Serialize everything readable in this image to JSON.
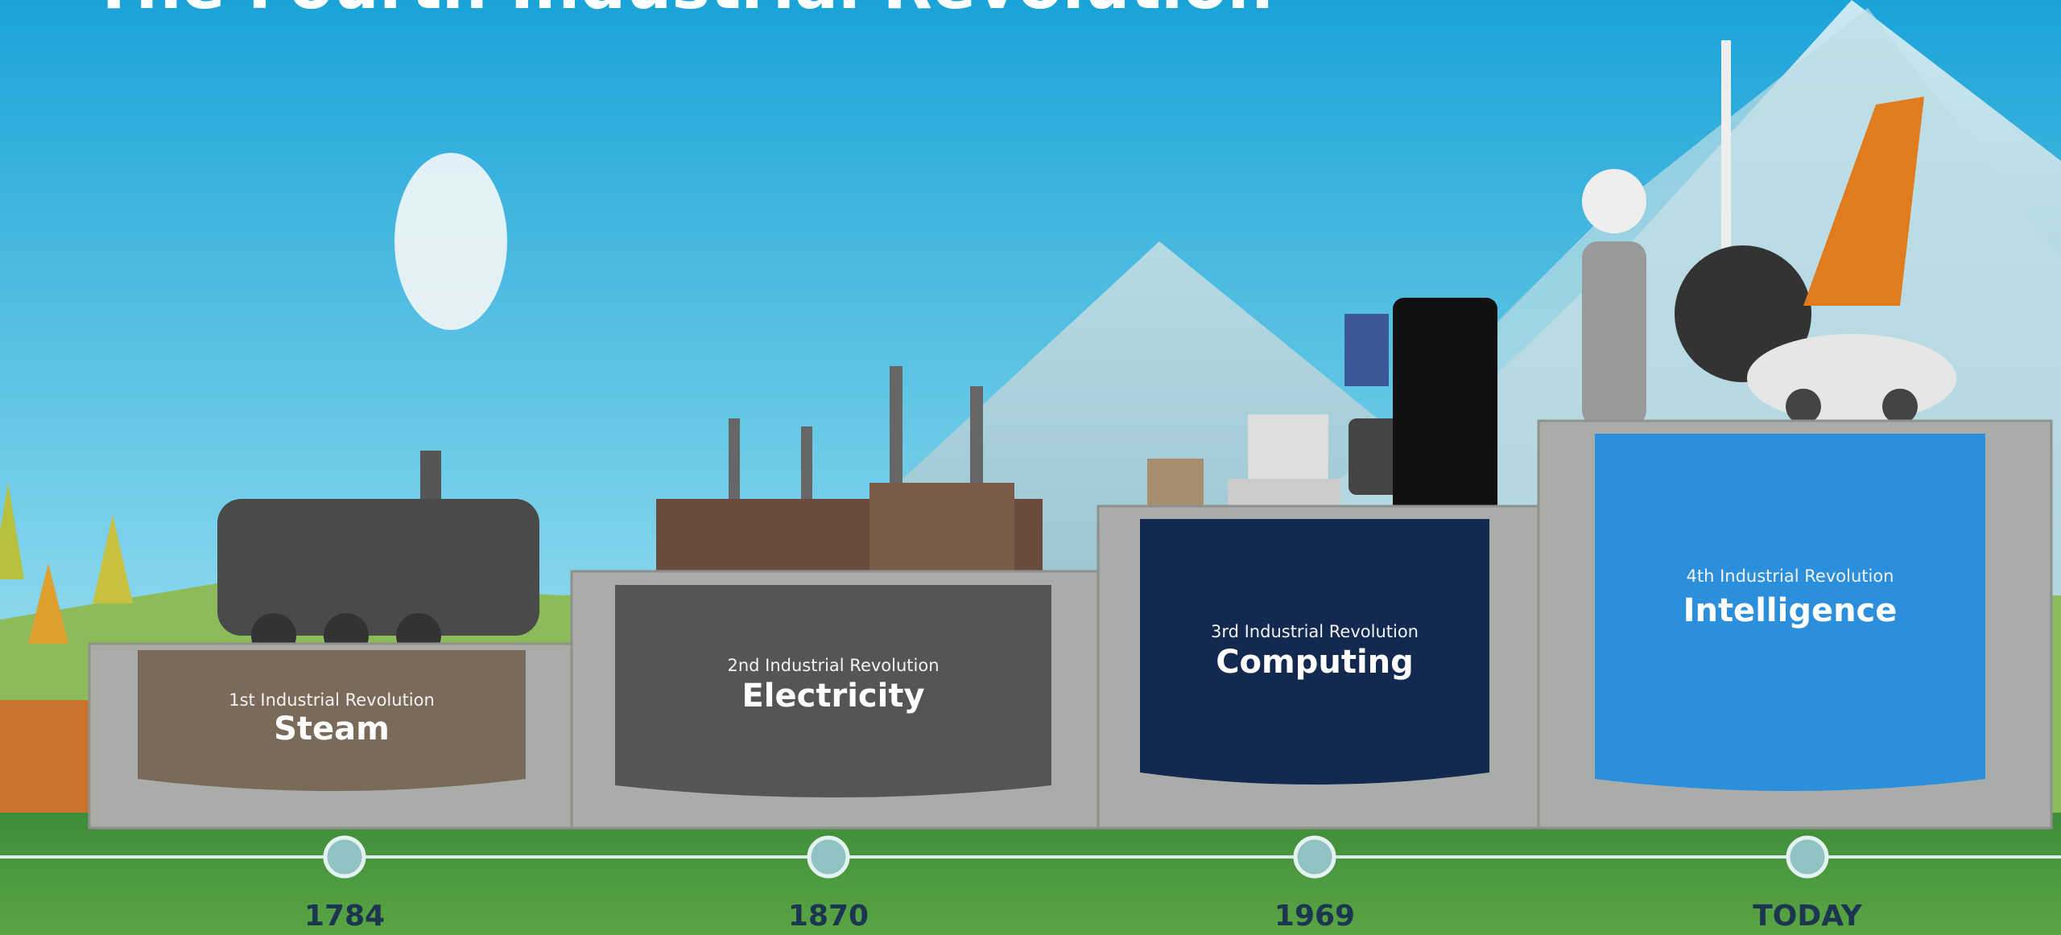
{
  "title": "The Fourth Industrial Revolution",
  "stages": [
    {
      "label": "1st Industrial Revolution",
      "name": "Steam",
      "year": "1784"
    },
    {
      "label": "2nd Industrial Revolution",
      "name": "Electricity",
      "year": "1870"
    },
    {
      "label": "3rd Industrial Revolution",
      "name": "Computing",
      "year": "1969"
    },
    {
      "label": "4th Industrial Revolution",
      "name": "Intelligence",
      "year": "TODAY"
    }
  ]
}
